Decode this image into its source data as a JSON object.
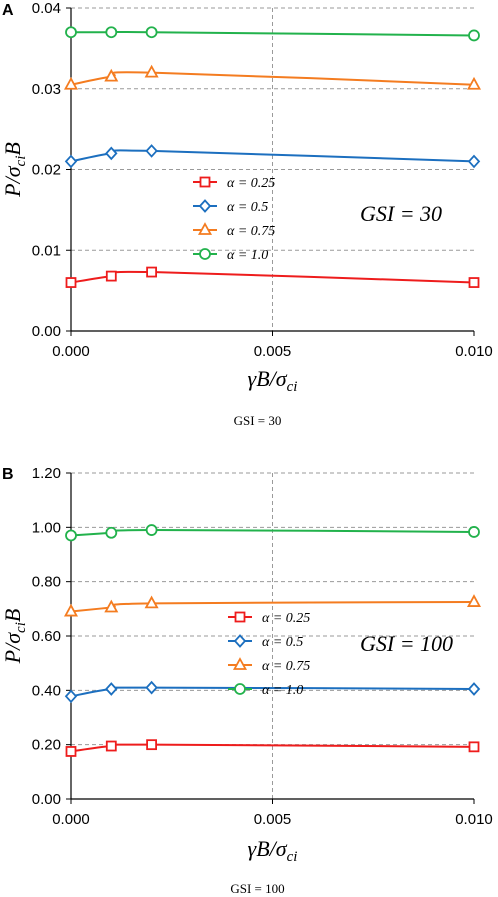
{
  "colors": {
    "red": "#ee1c1c",
    "blue": "#1c6fbf",
    "orange": "#f47c20",
    "green": "#22b24c"
  },
  "chart_data": [
    {
      "panel": "A",
      "type": "line",
      "x": [
        0.0,
        0.001,
        0.002,
        0.01
      ],
      "xticks": [
        "0.000",
        "0.005",
        "0.010"
      ],
      "xtick_values": [
        0.0,
        0.005,
        0.01
      ],
      "xlim": [
        0.0,
        0.01
      ],
      "yticks": [
        "0.00",
        "0.01",
        "0.02",
        "0.03",
        "0.04"
      ],
      "ytick_values": [
        0.0,
        0.01,
        0.02,
        0.03,
        0.04
      ],
      "ylim": [
        0.0,
        0.04
      ],
      "xlabel_main": "γB/σ",
      "xlabel_sub": "ci",
      "ylabel_pre": "P/σ",
      "ylabel_sub": "ci",
      "ylabel_post": "B",
      "annotation": "GSI = 30",
      "caption": "GSI = 30",
      "grid": true,
      "legend_position": "center",
      "series": [
        {
          "name": "α = 0.25",
          "marker": "square",
          "color": "#ee1c1c",
          "values": [
            0.006,
            0.0068,
            0.0073,
            0.006
          ]
        },
        {
          "name": "α = 0.5",
          "marker": "diamond",
          "color": "#1c6fbf",
          "values": [
            0.021,
            0.022,
            0.0223,
            0.021
          ]
        },
        {
          "name": "α = 0.75",
          "marker": "triangle",
          "color": "#f47c20",
          "values": [
            0.0305,
            0.0315,
            0.032,
            0.0305
          ]
        },
        {
          "name": "α = 1.0",
          "marker": "circle",
          "color": "#22b24c",
          "values": [
            0.037,
            0.037,
            0.037,
            0.0366
          ]
        }
      ]
    },
    {
      "panel": "B",
      "type": "line",
      "x": [
        0.0,
        0.001,
        0.002,
        0.01
      ],
      "xticks": [
        "0.000",
        "0.005",
        "0.010"
      ],
      "xtick_values": [
        0.0,
        0.005,
        0.01
      ],
      "xlim": [
        0.0,
        0.01
      ],
      "yticks": [
        "0.00",
        "0.20",
        "0.40",
        "0.60",
        "0.80",
        "1.00",
        "1.20"
      ],
      "ytick_values": [
        0.0,
        0.2,
        0.4,
        0.6,
        0.8,
        1.0,
        1.2
      ],
      "ylim": [
        0.0,
        1.2
      ],
      "xlabel_main": "γB/σ",
      "xlabel_sub": "ci",
      "ylabel_pre": "P/σ",
      "ylabel_sub": "ci",
      "ylabel_post": "B",
      "annotation": "GSI = 100",
      "caption": "GSI = 100",
      "grid": true,
      "legend_position": "center",
      "series": [
        {
          "name": "α = 0.25",
          "marker": "square",
          "color": "#ee1c1c",
          "values": [
            0.175,
            0.195,
            0.2,
            0.192
          ]
        },
        {
          "name": "α = 0.5",
          "marker": "diamond",
          "color": "#1c6fbf",
          "values": [
            0.378,
            0.405,
            0.41,
            0.405
          ]
        },
        {
          "name": "α = 0.75",
          "marker": "triangle",
          "color": "#f47c20",
          "values": [
            0.69,
            0.705,
            0.72,
            0.725
          ]
        },
        {
          "name": "α = 1.0",
          "marker": "circle",
          "color": "#22b24c",
          "values": [
            0.97,
            0.98,
            0.99,
            0.983
          ]
        }
      ]
    }
  ]
}
